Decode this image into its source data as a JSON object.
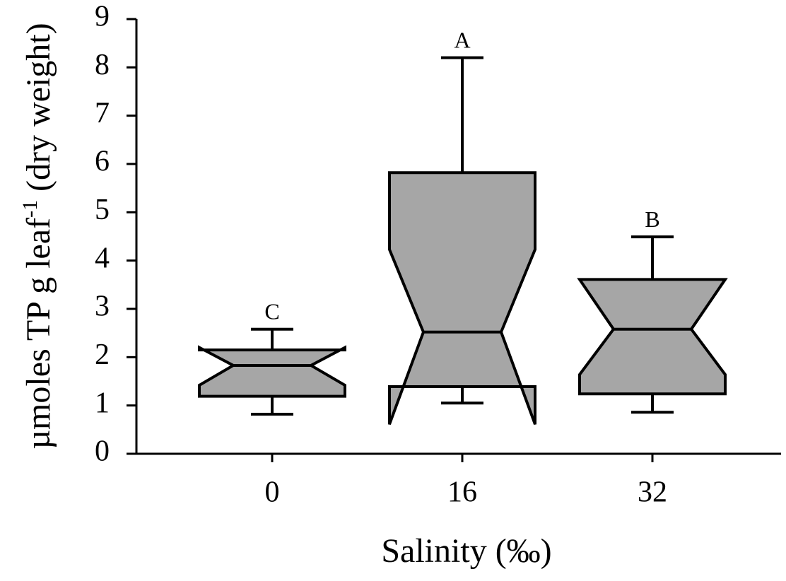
{
  "chart_data": {
    "type": "boxplot",
    "x_label": "Salinity (‰)",
    "y_label": {
      "text": "µmoles TP g leaf",
      "superscript": "-1",
      "suffix": "(dry weight)"
    },
    "categories": [
      "0",
      "16",
      "32"
    ],
    "boxes": [
      {
        "whislo": 0.82,
        "q1": 1.19,
        "notch_low": 1.42,
        "med": 1.83,
        "notch_high": 2.2,
        "q3": 2.15,
        "whishi": 2.58,
        "label": "C"
      },
      {
        "whislo": 1.05,
        "q1": 1.39,
        "notch_low": 0.61,
        "med": 2.52,
        "notch_high": 4.23,
        "q3": 5.82,
        "whishi": 8.2,
        "label": "A"
      },
      {
        "whislo": 0.86,
        "q1": 1.24,
        "notch_low": 1.64,
        "med": 2.58,
        "notch_high": 3.61,
        "q3": 3.61,
        "whishi": 4.49,
        "label": "B"
      }
    ],
    "color": "#a6a6a6",
    "ylim": [
      0,
      9
    ],
    "yticks": [
      0,
      1,
      2,
      3,
      4,
      5,
      6,
      7,
      8,
      9
    ]
  }
}
